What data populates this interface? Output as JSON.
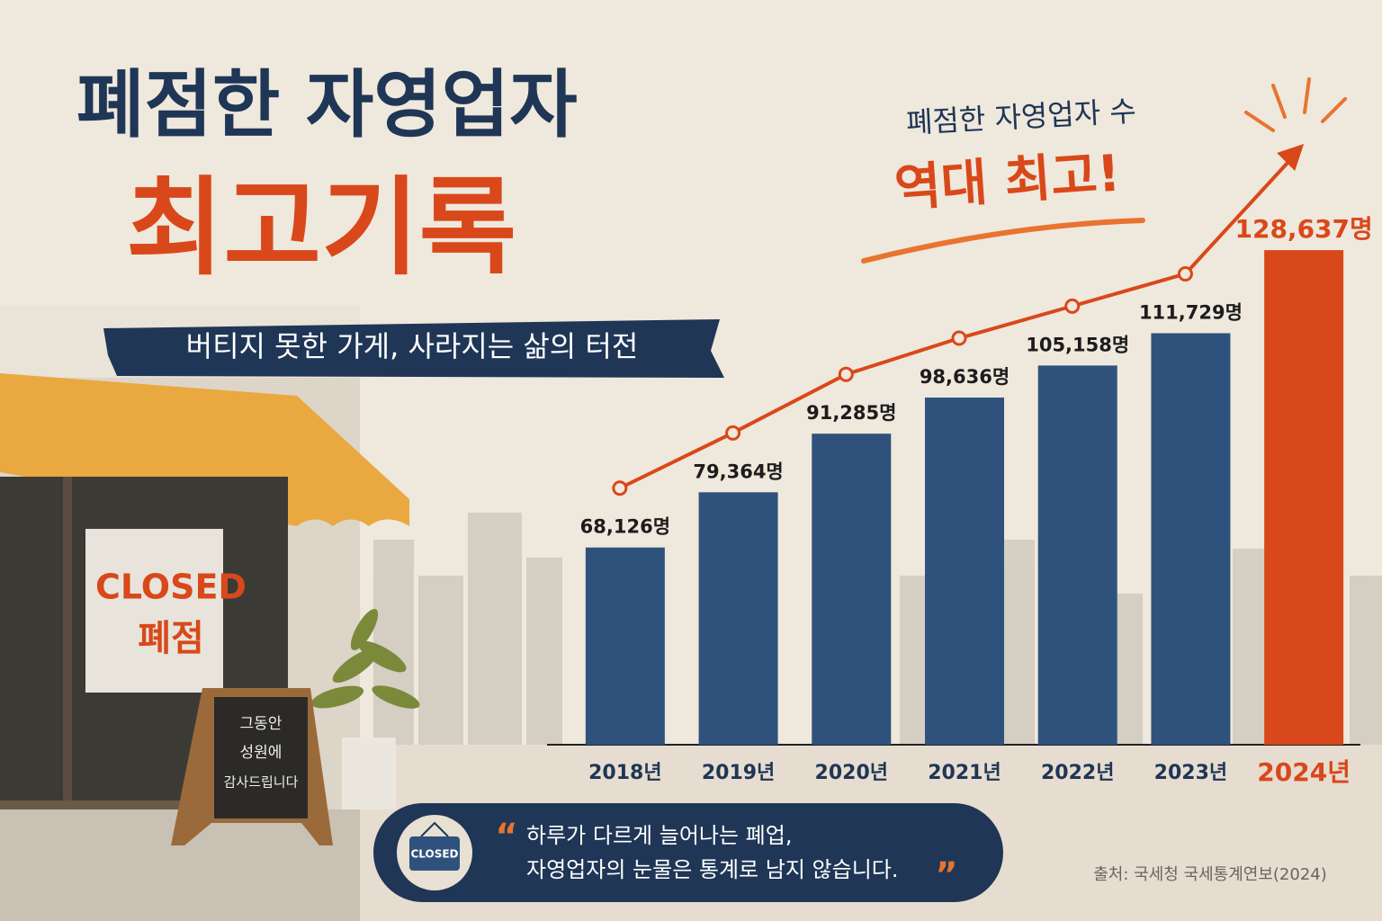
{
  "chart_data": {
    "type": "bar",
    "title": "폐점한 자영업자",
    "title_highlight": "최고기록",
    "subtitle": "버티지 못한 가게, 사라지는 삶의 터전",
    "annotation": "폐점한 자영업자 수",
    "annotation_highlight": "역대 최고!",
    "categories": [
      "2018년",
      "2019년",
      "2020년",
      "2021년",
      "2022년",
      "2023년",
      "2024년"
    ],
    "values": [
      68126,
      79364,
      91285,
      98636,
      105158,
      111729,
      128637
    ],
    "value_labels": [
      "68,126명",
      "79,364명",
      "91,285명",
      "98,636명",
      "105,158명",
      "111,729명",
      "128,637명"
    ],
    "colors": [
      "#2f527d",
      "#2f527d",
      "#2f527d",
      "#2f527d",
      "#2f527d",
      "#2f527d",
      "#d9481a"
    ],
    "line_color": "#d9481a",
    "ylim": [
      28000,
      140000
    ],
    "sign": {
      "line1": "CLOSED",
      "line2": "폐점"
    },
    "board": [
      "그동안",
      "성원에",
      "감사드립니다"
    ],
    "badge": "CLOSED",
    "quote": {
      "open": "“",
      "lines": [
        "하루가 다르게 늘어나는 폐업,",
        "자영업자의 눈물은 통계로 남지 않습니다."
      ],
      "close": "”"
    },
    "source": "출처: 국세청 국세통계연보(2024)"
  }
}
